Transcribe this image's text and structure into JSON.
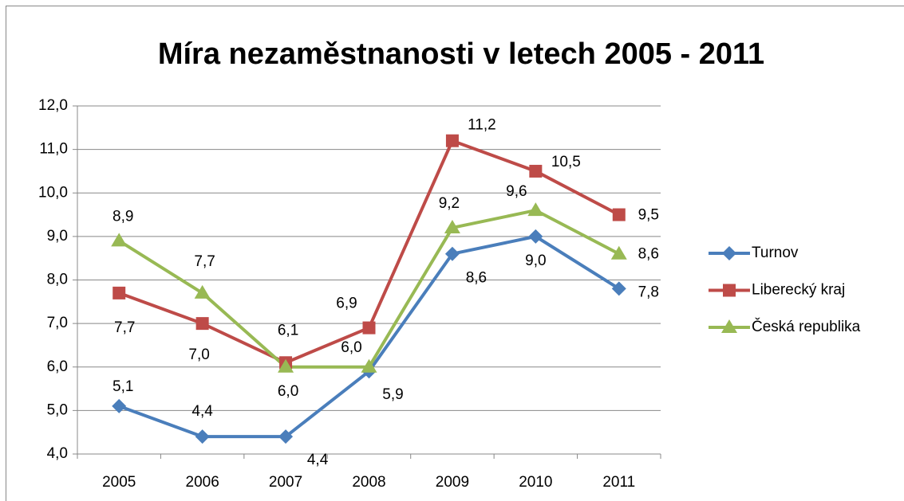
{
  "chart_data": {
    "type": "line",
    "title": "Míra nezaměstnanosti v letech 2005 - 2011",
    "categories": [
      "2005",
      "2006",
      "2007",
      "2008",
      "2009",
      "2010",
      "2011"
    ],
    "series": [
      {
        "name": "Turnov",
        "color": "#4a7ebb",
        "values": [
          5.1,
          4.4,
          4.4,
          5.9,
          8.6,
          9.0,
          7.8
        ],
        "value_labels": [
          "5,1",
          "4,4",
          "4,4",
          "5,9",
          "8,6",
          "9,0",
          "7,8"
        ]
      },
      {
        "name": "Liberecký kraj",
        "color": "#be4b48",
        "values": [
          7.7,
          7.0,
          6.1,
          6.9,
          11.2,
          10.5,
          9.5
        ],
        "value_labels": [
          "7,7",
          "7,0",
          "6,1",
          "6,9",
          "11,2",
          "10,5",
          "9,5"
        ]
      },
      {
        "name": "Česká republika",
        "color": "#98b954",
        "values": [
          8.9,
          7.7,
          6.0,
          6.0,
          9.2,
          9.6,
          8.6
        ],
        "value_labels": [
          "8,9",
          "7,7",
          "6,0",
          "6,0",
          "9,2",
          "9,6",
          "8,6"
        ]
      }
    ],
    "ylim": [
      4,
      12
    ],
    "yticks": [
      {
        "value": 4,
        "label": "4,0"
      },
      {
        "value": 5,
        "label": "5,0"
      },
      {
        "value": 6,
        "label": "6,0"
      },
      {
        "value": 7,
        "label": "7,0"
      },
      {
        "value": 8,
        "label": "8,0"
      },
      {
        "value": 9,
        "label": "9,0"
      },
      {
        "value": 10,
        "label": "10,0"
      },
      {
        "value": 11,
        "label": "11,0"
      },
      {
        "value": 12,
        "label": "12,0"
      }
    ],
    "grid": true,
    "legend": "right"
  }
}
